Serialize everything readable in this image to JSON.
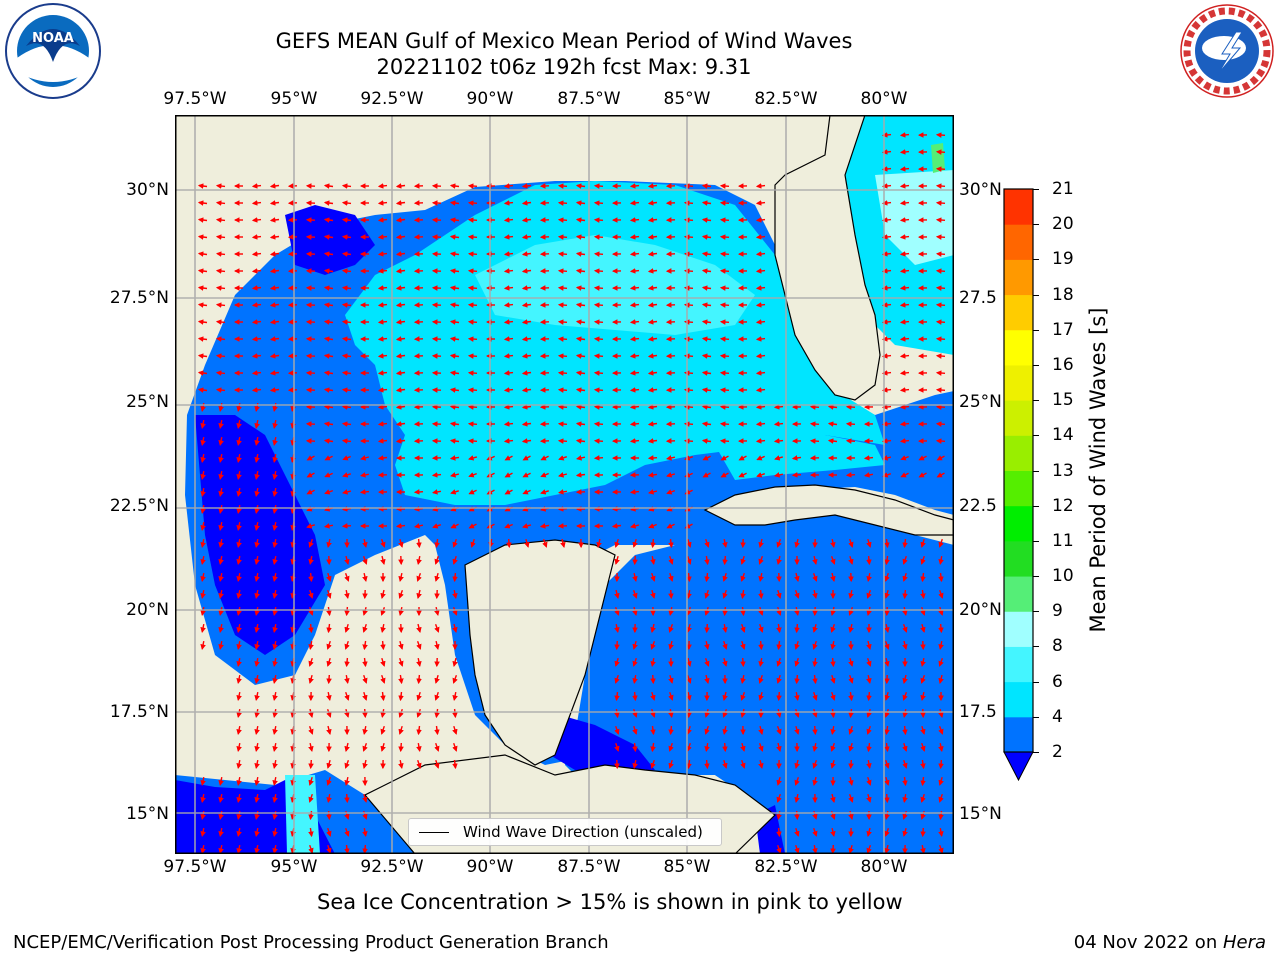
{
  "title": {
    "line1": "GEFS MEAN Gulf of Mexico Mean Period of Wind Waves",
    "line2": "20221102 t06z 192h fcst   Max: 9.31"
  },
  "map": {
    "lon_ticks": [
      "97.5°W",
      "95°W",
      "92.5°W",
      "90°W",
      "87.5°W",
      "85°W",
      "82.5°W",
      "80°W"
    ],
    "lat_ticks_left": [
      "30°N",
      "27.5°N",
      "25°N",
      "22.5°N",
      "20°N",
      "17.5°N",
      "15°N"
    ],
    "lat_ticks_right": [
      "30°N",
      "27.5",
      "25°N",
      "22.5",
      "20°N",
      "17.5",
      "15°N"
    ],
    "land_color": "#efeedc",
    "arrow_color": "#ff0000"
  },
  "legend": {
    "label": "Wind Wave Direction (unscaled)"
  },
  "colorbar": {
    "label": "Mean Period of Wind Waves [s]",
    "ticks": [
      "2",
      "4",
      "6",
      "8",
      "9",
      "10",
      "11",
      "12",
      "13",
      "14",
      "15",
      "16",
      "17",
      "18",
      "19",
      "20",
      "21"
    ],
    "colors": [
      "#0073ff",
      "#00e5ff",
      "#44f5ff",
      "#a0ffff",
      "#55ee77",
      "#22dd22",
      "#00ee00",
      "#55ee00",
      "#99ee00",
      "#ccf000",
      "#eef000",
      "#ffff00",
      "#ffcc00",
      "#ff9900",
      "#ff6600",
      "#ff3300",
      "#ff0000"
    ],
    "under_color": "#0000ff"
  },
  "logos": {
    "left": "NOAA",
    "right": "NATIONAL WEATHER SERVICE"
  },
  "notes": {
    "sea_ice": "Sea Ice Concentration > 15% is shown in pink to yellow"
  },
  "footer": {
    "left": "NCEP/EMC/Verification Post Processing Product Generation Branch",
    "right_date": "04 Nov 2022 on ",
    "right_host": "Hera"
  }
}
